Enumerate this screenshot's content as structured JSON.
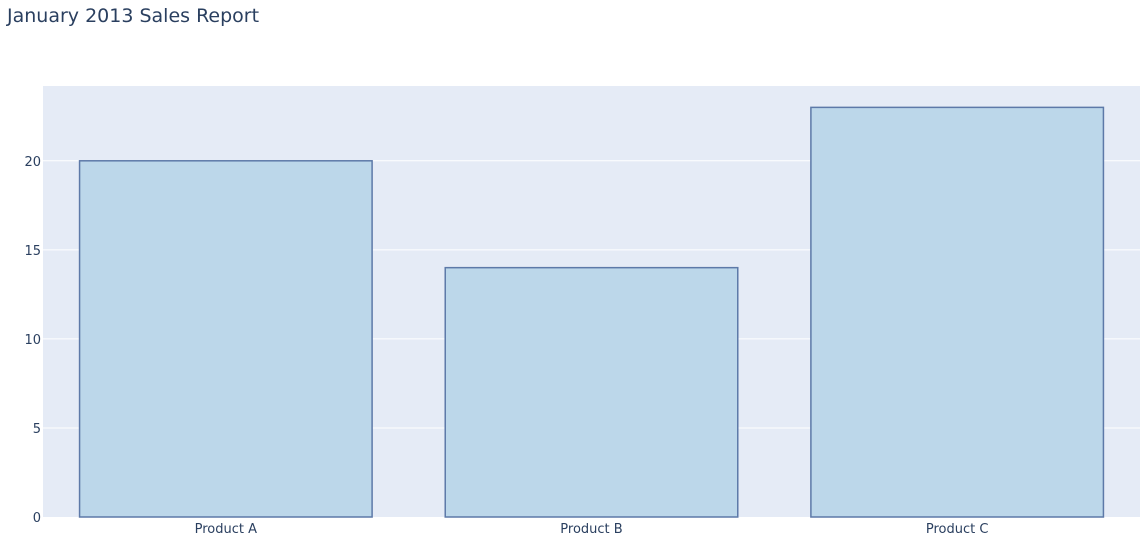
{
  "chart_data": {
    "type": "bar",
    "title": "January 2013 Sales Report",
    "xlabel": "",
    "ylabel": "",
    "categories": [
      "Product A",
      "Product B",
      "Product C"
    ],
    "values": [
      20,
      14,
      23
    ],
    "ylim": [
      0,
      24.2
    ],
    "yticks": [
      0,
      5,
      10,
      15,
      20
    ],
    "grid": true,
    "legend": "none",
    "colors": {
      "bar_fill": "#bcd7ea",
      "bar_stroke": "#5d79a8",
      "plot_background": "#e5ebf6",
      "grid": "#ffffff",
      "text": "#2a3f5f"
    }
  }
}
